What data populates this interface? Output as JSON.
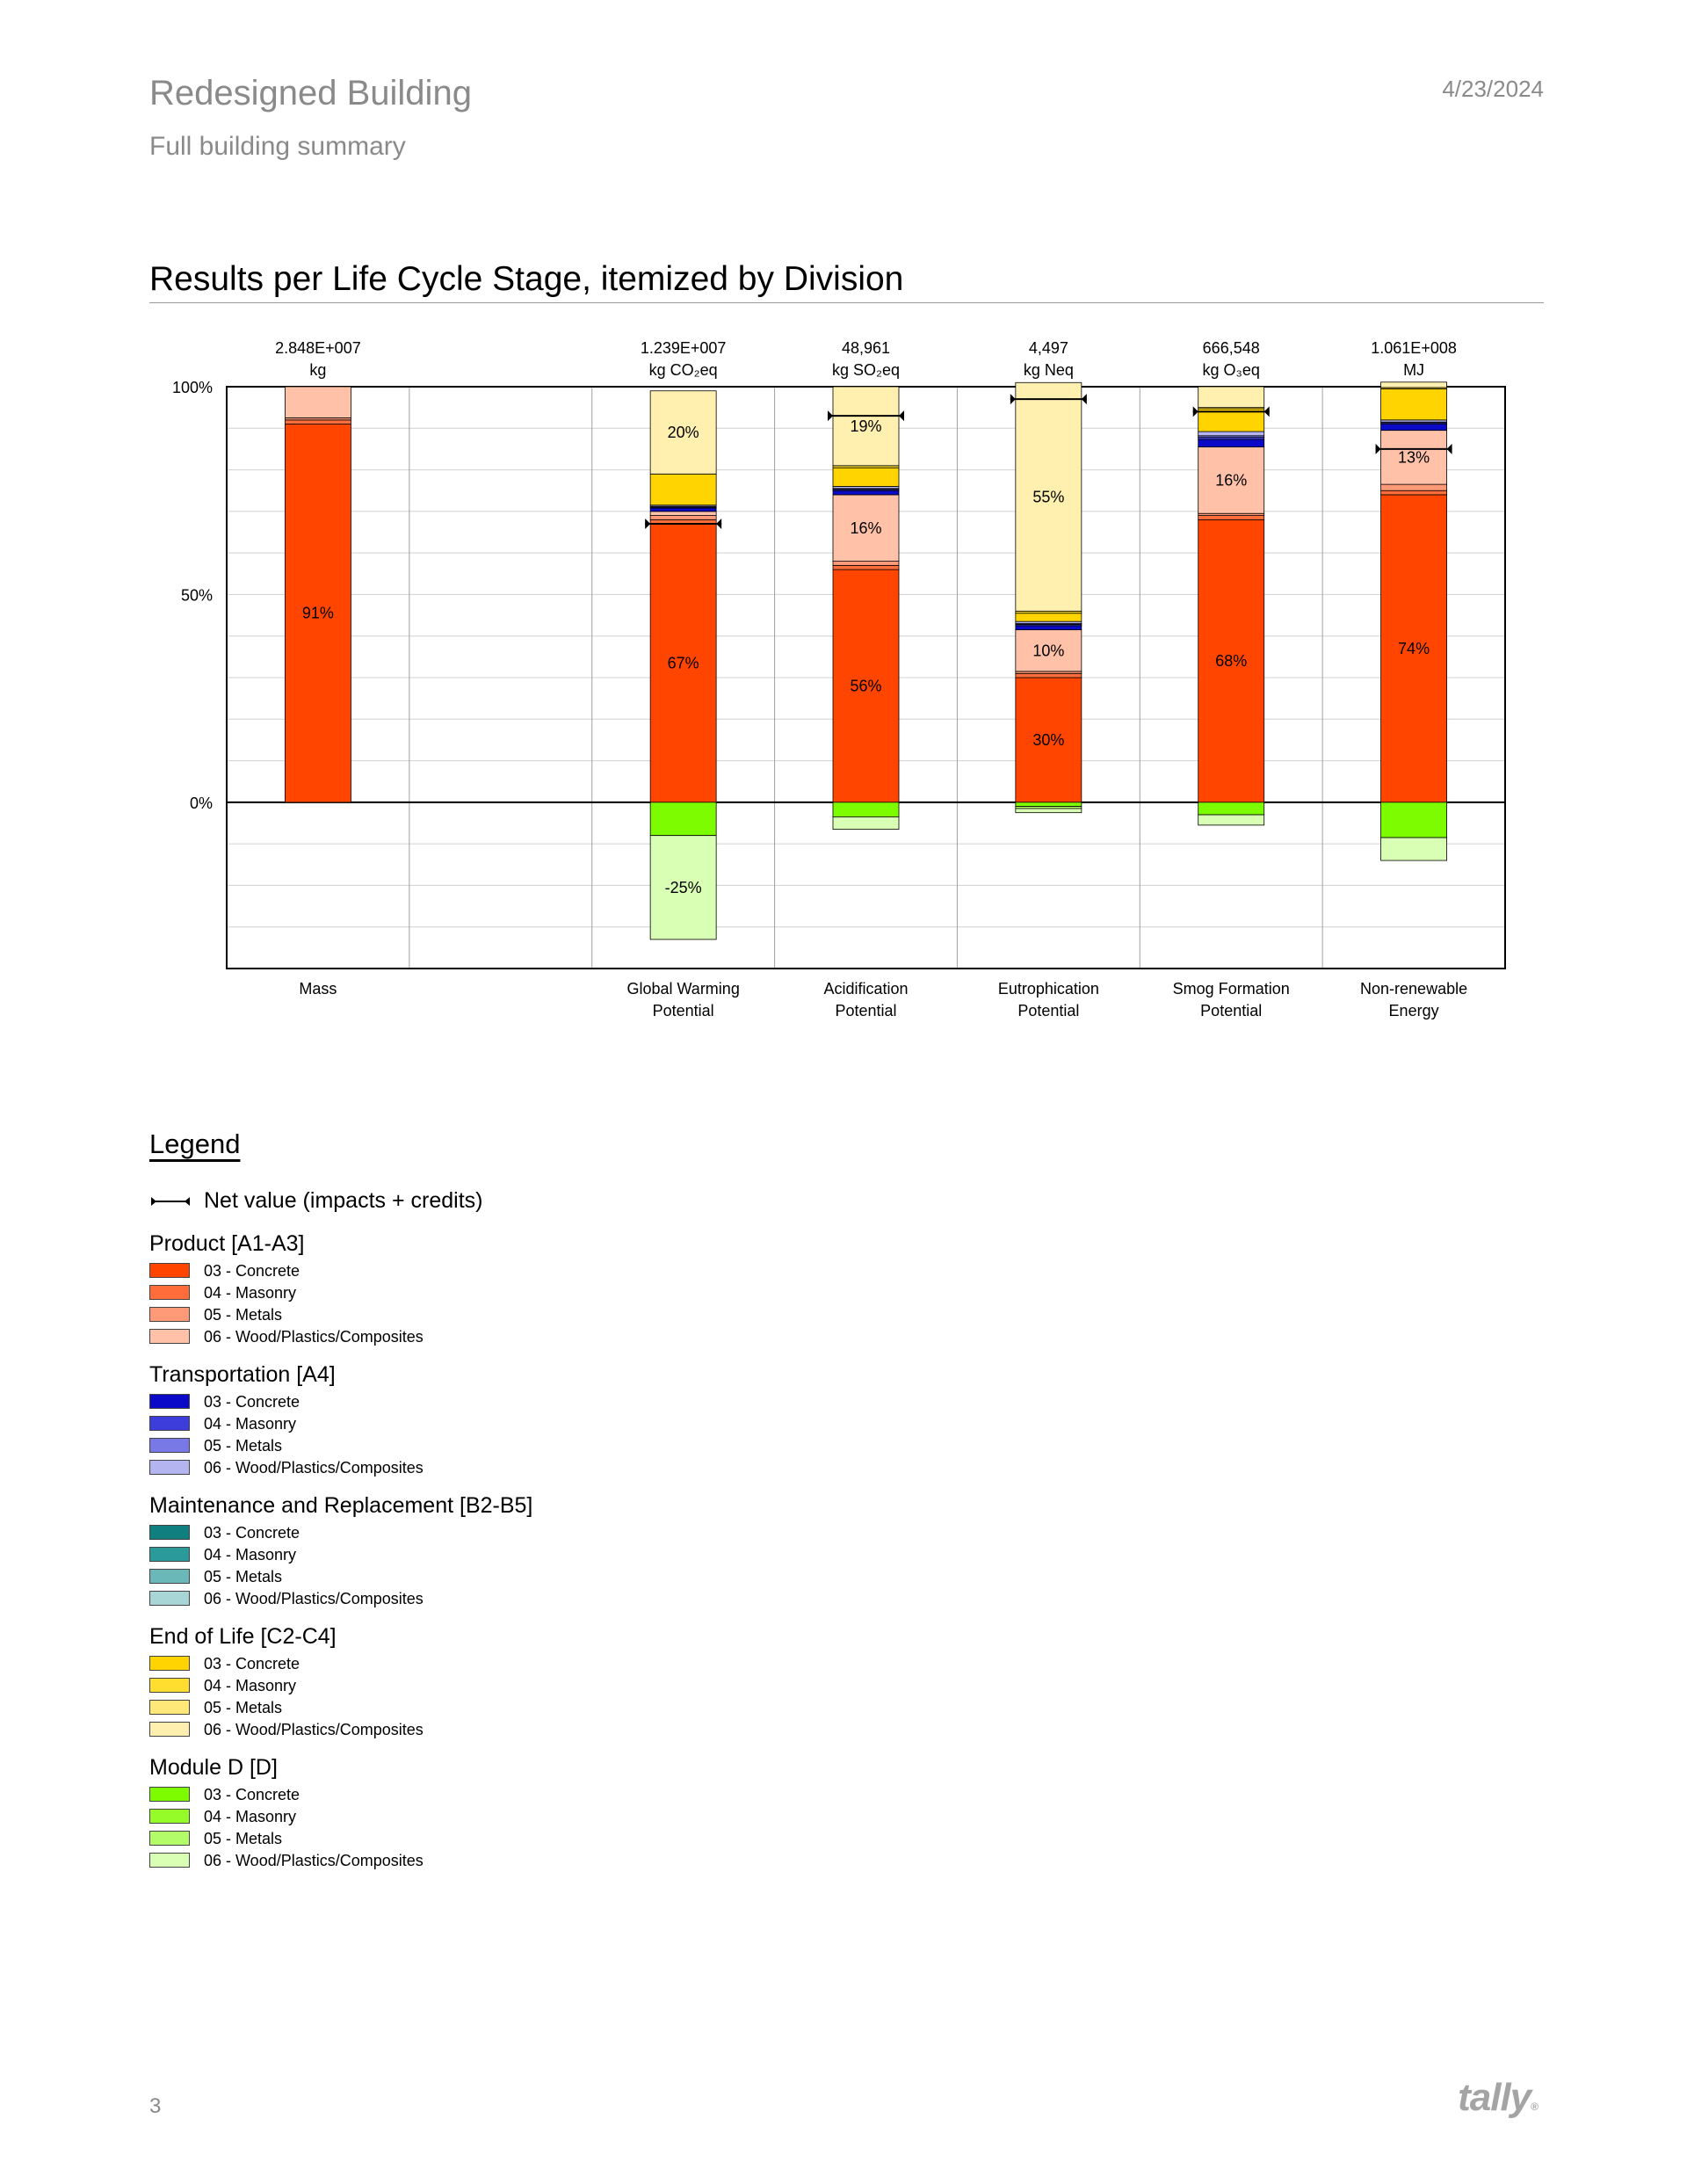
{
  "header": {
    "title": "Redesigned Building",
    "subtitle": "Full building summary",
    "date": "4/23/2024"
  },
  "section_title": "Results per Life Cycle Stage, itemized by Division",
  "chart_data": {
    "type": "bar",
    "stacked": true,
    "ylim": [
      -40,
      100
    ],
    "y_ticks": [
      "100%",
      "50%",
      "0%"
    ],
    "y_tick_values": [
      100,
      50,
      0
    ],
    "grid": true,
    "categories": [
      {
        "label": [
          "Mass"
        ],
        "total": "2.848E+007",
        "unit": "kg"
      },
      {
        "label": [
          ""
        ],
        "total": "",
        "unit": "",
        "empty": true
      },
      {
        "label": [
          "Global Warming",
          "Potential"
        ],
        "total": "1.239E+007",
        "unit": "kg CO₂eq"
      },
      {
        "label": [
          "Acidification",
          "Potential"
        ],
        "total": "48,961",
        "unit": "kg SO₂eq"
      },
      {
        "label": [
          "Eutrophication",
          "Potential"
        ],
        "total": "4,497",
        "unit": "kg Neq"
      },
      {
        "label": [
          "Smog Formation",
          "Potential"
        ],
        "total": "666,548",
        "unit": "kg O₃eq"
      },
      {
        "label": [
          "Non-renewable",
          "Energy"
        ],
        "total": "1.061E+008",
        "unit": "MJ"
      }
    ],
    "series": [
      {
        "name": "Product [A1-A3] - 03 - Concrete",
        "color": "#ff4500",
        "values": [
          91,
          0,
          67,
          56,
          30,
          68,
          74
        ]
      },
      {
        "name": "Product [A1-A3] - 04 - Masonry",
        "color": "#ff6d3a",
        "values": [
          1,
          0,
          1,
          1,
          1,
          1,
          1
        ]
      },
      {
        "name": "Product [A1-A3] - 05 - Metals",
        "color": "#ff9a78",
        "values": [
          0.5,
          0,
          1,
          1,
          0.5,
          0.5,
          1.5
        ]
      },
      {
        "name": "Product [A1-A3] - 06 - Wood/Plastics/Composites",
        "color": "#ffc2a8",
        "values": [
          7.5,
          0,
          1,
          16,
          10,
          16,
          13
        ]
      },
      {
        "name": "Transportation [A4] - 03 - Concrete",
        "color": "#0a0ac8",
        "values": [
          0,
          0,
          0.8,
          1,
          1,
          1.8,
          1.5
        ]
      },
      {
        "name": "Transportation [A4] - 04 - Masonry",
        "color": "#3d3ddc",
        "values": [
          0,
          0,
          0.2,
          0.3,
          0.3,
          0.5,
          0.3
        ]
      },
      {
        "name": "Transportation [A4] - 05 - Metals",
        "color": "#7878e6",
        "values": [
          0,
          0,
          0.2,
          0.2,
          0.2,
          0.4,
          0.2
        ]
      },
      {
        "name": "Transportation [A4] - 06 - Wood/Plastics/Composites",
        "color": "#b4b4f0",
        "values": [
          0,
          0,
          0.3,
          0.5,
          0.5,
          1,
          0.5
        ]
      },
      {
        "name": "Maintenance and Replacement [B2-B5] - 03 - Concrete",
        "color": "#0f7f7f",
        "values": [
          0,
          0,
          0,
          0,
          0,
          0,
          0
        ]
      },
      {
        "name": "Maintenance and Replacement [B2-B5] - 04 - Masonry",
        "color": "#2a9a9a",
        "values": [
          0,
          0,
          0,
          0,
          0,
          0,
          0
        ]
      },
      {
        "name": "Maintenance and Replacement [B2-B5] - 05 - Metals",
        "color": "#6ab8b8",
        "values": [
          0,
          0,
          0,
          0,
          0,
          0,
          0
        ]
      },
      {
        "name": "Maintenance and Replacement [B2-B5] - 06 - Wood/Plastics/Composites",
        "color": "#a8d6d6",
        "values": [
          0,
          0,
          0,
          0,
          0,
          0,
          0
        ]
      },
      {
        "name": "End of Life [C2-C4] - 03 - Concrete",
        "color": "#ffd400",
        "values": [
          0,
          0,
          7.5,
          4.5,
          2,
          5.5,
          7.5
        ]
      },
      {
        "name": "End of Life [C2-C4] - 04 - Masonry",
        "color": "#ffde30",
        "values": [
          0,
          0,
          0,
          0.5,
          0.5,
          0.3,
          0.3
        ]
      },
      {
        "name": "End of Life [C2-C4] - 05 - Metals",
        "color": "#ffe878",
        "values": [
          0,
          0,
          0,
          0,
          0,
          0,
          0
        ]
      },
      {
        "name": "End of Life [C2-C4] - 06 - Wood/Plastics/Composites",
        "color": "#fff0b0",
        "values": [
          0,
          0,
          20,
          19,
          55,
          5,
          1.3
        ]
      },
      {
        "name": "Module D [D] - 03 - Concrete",
        "color": "#7dfc00",
        "values": [
          0,
          0,
          -8,
          -3.5,
          -1,
          -3,
          -8.5
        ]
      },
      {
        "name": "Module D [D] - 04 - Masonry",
        "color": "#95fc2a",
        "values": [
          0,
          0,
          0,
          0,
          0,
          0,
          0
        ]
      },
      {
        "name": "Module D [D] - 05 - Metals",
        "color": "#b2fc6a",
        "values": [
          0,
          0,
          0,
          0,
          -0.5,
          0,
          0
        ]
      },
      {
        "name": "Module D [D] - 06 - Wood/Plastics/Composites",
        "color": "#d8ffb4",
        "values": [
          0,
          0,
          -25,
          -3,
          -1,
          -2.5,
          -5.5
        ]
      }
    ],
    "net_values": [
      null,
      null,
      67,
      93,
      97,
      94,
      85
    ],
    "data_labels": [
      {
        "category": 0,
        "series": 0,
        "text": "91%"
      },
      {
        "category": 2,
        "series": 0,
        "text": "67%"
      },
      {
        "category": 2,
        "series": 15,
        "text": "20%"
      },
      {
        "category": 2,
        "series": 19,
        "text": "-25%"
      },
      {
        "category": 3,
        "series": 0,
        "text": "56%"
      },
      {
        "category": 3,
        "series": 3,
        "text": "16%"
      },
      {
        "category": 3,
        "series": 15,
        "text": "19%"
      },
      {
        "category": 4,
        "series": 0,
        "text": "30%"
      },
      {
        "category": 4,
        "series": 3,
        "text": "10%"
      },
      {
        "category": 4,
        "series": 15,
        "text": "55%"
      },
      {
        "category": 5,
        "series": 0,
        "text": "68%"
      },
      {
        "category": 5,
        "series": 3,
        "text": "16%"
      },
      {
        "category": 6,
        "series": 0,
        "text": "74%"
      },
      {
        "category": 6,
        "series": 3,
        "text": "13%"
      }
    ]
  },
  "legend": {
    "heading": "Legend",
    "net_label": "Net value (impacts + credits)",
    "groups": [
      {
        "title": "Product [A1-A3]",
        "items": [
          {
            "label": "03 - Concrete",
            "color": "#ff4500"
          },
          {
            "label": "04 - Masonry",
            "color": "#ff6d3a"
          },
          {
            "label": "05 - Metals",
            "color": "#ff9a78"
          },
          {
            "label": "06 - Wood/Plastics/Composites",
            "color": "#ffc2a8"
          }
        ]
      },
      {
        "title": "Transportation [A4]",
        "items": [
          {
            "label": "03 - Concrete",
            "color": "#0a0ac8"
          },
          {
            "label": "04 - Masonry",
            "color": "#3d3ddc"
          },
          {
            "label": "05 - Metals",
            "color": "#7878e6"
          },
          {
            "label": "06 - Wood/Plastics/Composites",
            "color": "#b4b4f0"
          }
        ]
      },
      {
        "title": "Maintenance and Replacement [B2-B5]",
        "items": [
          {
            "label": "03 - Concrete",
            "color": "#0f7f7f"
          },
          {
            "label": "04 - Masonry",
            "color": "#2a9a9a"
          },
          {
            "label": "05 - Metals",
            "color": "#6ab8b8"
          },
          {
            "label": "06 - Wood/Plastics/Composites",
            "color": "#a8d6d6"
          }
        ]
      },
      {
        "title": "End of Life [C2-C4]",
        "items": [
          {
            "label": "03 - Concrete",
            "color": "#ffd400"
          },
          {
            "label": "04 - Masonry",
            "color": "#ffde30"
          },
          {
            "label": "05 - Metals",
            "color": "#ffe878"
          },
          {
            "label": "06 - Wood/Plastics/Composites",
            "color": "#fff0b0"
          }
        ]
      },
      {
        "title": "Module D [D]",
        "items": [
          {
            "label": "03 - Concrete",
            "color": "#7dfc00"
          },
          {
            "label": "04 - Masonry",
            "color": "#95fc2a"
          },
          {
            "label": "05 - Metals",
            "color": "#b2fc6a"
          },
          {
            "label": "06 - Wood/Plastics/Composites",
            "color": "#d8ffb4"
          }
        ]
      }
    ]
  },
  "footer": {
    "page_number": "3",
    "brand": "tally",
    "brand_mark": "®"
  }
}
